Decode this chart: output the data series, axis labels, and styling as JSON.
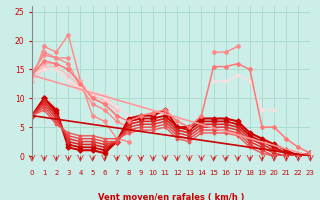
{
  "bg_color": "#cceee8",
  "grid_color": "#aaddcc",
  "xlabel": "Vent moyen/en rafales ( km/h )",
  "xlabel_color": "#cc0000",
  "tick_color": "#cc0000",
  "xmin": 0,
  "xmax": 23,
  "ymin": 0,
  "ymax": 26,
  "yticks": [
    0,
    5,
    10,
    15,
    20,
    25
  ],
  "xticks": [
    0,
    1,
    2,
    3,
    4,
    5,
    6,
    7,
    8,
    9,
    10,
    11,
    12,
    13,
    14,
    15,
    16,
    17,
    18,
    19,
    20,
    21,
    22,
    23
  ],
  "lines": [
    {
      "x": [
        0,
        1,
        2,
        3,
        4,
        5,
        6,
        7,
        8,
        9,
        10,
        11,
        12,
        13,
        14,
        15,
        16,
        17,
        18,
        19,
        20,
        21,
        22,
        23
      ],
      "y": [
        13,
        19,
        18,
        21,
        13,
        7,
        6,
        3,
        2.5,
        null,
        null,
        null,
        null,
        null,
        null,
        null,
        null,
        null,
        null,
        null,
        null,
        null,
        null,
        null
      ],
      "color": "#ff8888",
      "lw": 1.0,
      "marker": "D",
      "ms": 2.0
    },
    {
      "x": [
        0,
        1,
        2,
        3,
        4,
        5,
        6,
        7,
        8,
        9,
        10,
        11,
        12,
        13,
        14,
        15,
        16,
        17,
        18,
        19,
        20,
        21,
        22,
        23
      ],
      "y": [
        14,
        18,
        17,
        17,
        null,
        null,
        null,
        null,
        null,
        null,
        null,
        null,
        null,
        null,
        null,
        18,
        18,
        19,
        null,
        null,
        null,
        null,
        null,
        null
      ],
      "color": "#ff8888",
      "lw": 1.0,
      "marker": "D",
      "ms": 2.0
    },
    {
      "x": [
        0,
        1,
        2,
        3,
        4,
        5,
        6,
        7,
        8,
        9,
        10,
        11,
        12,
        13,
        14,
        15,
        16,
        17,
        18,
        19,
        20,
        21,
        22,
        23
      ],
      "y": [
        14.5,
        17.5,
        17,
        16,
        12,
        9,
        8,
        6,
        5,
        null,
        null,
        null,
        null,
        null,
        null,
        null,
        null,
        null,
        null,
        null,
        null,
        null,
        null,
        null
      ],
      "color": "#ff8888",
      "lw": 1.0,
      "marker": "D",
      "ms": 2.0
    },
    {
      "x": [
        0,
        1,
        2,
        3,
        4,
        5,
        6,
        7,
        8,
        9,
        10,
        11,
        12,
        13,
        14,
        15,
        16,
        17,
        18,
        19,
        20,
        21,
        22,
        23
      ],
      "y": [
        14,
        16,
        16,
        15,
        13,
        10,
        9,
        7,
        null,
        null,
        null,
        null,
        null,
        null,
        null,
        null,
        null,
        null,
        null,
        null,
        null,
        null,
        null,
        null
      ],
      "color": "#ffaaaa",
      "lw": 1.0,
      "marker": "D",
      "ms": 1.8
    },
    {
      "x": [
        0,
        1,
        2,
        3,
        4,
        5,
        6,
        7,
        8,
        9,
        10,
        11,
        12,
        13,
        14,
        15,
        16,
        17,
        18,
        19,
        20,
        21,
        22,
        23
      ],
      "y": [
        13.5,
        15.5,
        15.5,
        14,
        12,
        10.5,
        9.5,
        8,
        null,
        null,
        null,
        null,
        null,
        null,
        null,
        null,
        null,
        null,
        null,
        null,
        null,
        null,
        null,
        null
      ],
      "color": "#ffbbbb",
      "lw": 1.0,
      "marker": "D",
      "ms": 1.8
    },
    {
      "x": [
        0,
        1,
        2,
        3,
        4,
        5,
        6,
        7,
        8,
        9,
        10,
        11,
        12,
        13,
        14,
        15,
        16,
        17,
        18,
        19,
        20,
        21,
        22,
        23
      ],
      "y": [
        13,
        15,
        15,
        13,
        11.5,
        11,
        10.5,
        8.5,
        null,
        null,
        null,
        null,
        null,
        null,
        null,
        null,
        null,
        null,
        null,
        null,
        null,
        null,
        null,
        null
      ],
      "color": "#ffcccc",
      "lw": 1.0,
      "marker": "D",
      "ms": 1.5
    },
    {
      "x": [
        0,
        1,
        2,
        3,
        4,
        5,
        6,
        7,
        8,
        9,
        10,
        11,
        12,
        13,
        14,
        15,
        16,
        17,
        18,
        19,
        20,
        21,
        22,
        23
      ],
      "y": [
        14,
        15,
        15,
        13,
        12,
        11,
        10,
        8.5,
        7,
        null,
        null,
        null,
        null,
        null,
        null,
        13,
        13,
        14,
        13,
        8,
        8,
        null,
        null,
        null
      ],
      "color": "#ffdddd",
      "lw": 1.0,
      "marker": "D",
      "ms": 1.5
    },
    {
      "x": [
        0,
        1,
        2,
        3,
        4,
        5,
        6,
        7,
        8,
        9,
        10,
        11,
        12,
        13,
        14,
        15,
        16,
        17,
        18,
        19,
        20,
        21,
        22,
        23
      ],
      "y": [
        7,
        10,
        8,
        1.5,
        1,
        1,
        0.5,
        2.5,
        6.5,
        7,
        7,
        8,
        5,
        5,
        6.5,
        6.5,
        6.5,
        6,
        4,
        3,
        2,
        1,
        0,
        0.5
      ],
      "color": "#cc0000",
      "lw": 1.5,
      "marker": "D",
      "ms": 2.5
    },
    {
      "x": [
        0,
        1,
        2,
        3,
        4,
        5,
        6,
        7,
        8,
        9,
        10,
        11,
        12,
        13,
        14,
        15,
        16,
        17,
        18,
        19,
        20,
        21,
        22,
        23
      ],
      "y": [
        7,
        10,
        7.5,
        2,
        1.5,
        1.5,
        1,
        2.5,
        6,
        6.5,
        6.5,
        7,
        5,
        4.5,
        6,
        6,
        6,
        5.5,
        3.5,
        2.5,
        1.5,
        0.5,
        0,
        0.5
      ],
      "color": "#cc0000",
      "lw": 1.3,
      "marker": "D",
      "ms": 2.5
    },
    {
      "x": [
        0,
        1,
        2,
        3,
        4,
        5,
        6,
        7,
        8,
        9,
        10,
        11,
        12,
        13,
        14,
        15,
        16,
        17,
        18,
        19,
        20,
        21,
        22,
        23
      ],
      "y": [
        7,
        9.5,
        7,
        2.5,
        2,
        2,
        1.5,
        2.5,
        5.5,
        6,
        6,
        6.5,
        4.5,
        4,
        5.5,
        5.5,
        5.5,
        5,
        3,
        2,
        1,
        0.5,
        0,
        0.5
      ],
      "color": "#dd2222",
      "lw": 1.2,
      "marker": "D",
      "ms": 2.0
    },
    {
      "x": [
        0,
        1,
        2,
        3,
        4,
        5,
        6,
        7,
        8,
        9,
        10,
        11,
        12,
        13,
        14,
        15,
        16,
        17,
        18,
        19,
        20,
        21,
        22,
        23
      ],
      "y": [
        7,
        9,
        6.5,
        3,
        2.5,
        2.5,
        2,
        2.5,
        5,
        5.5,
        5.5,
        6,
        4,
        3.5,
        5,
        5,
        5,
        4.5,
        2.5,
        1.5,
        0.5,
        0,
        0,
        0.5
      ],
      "color": "#dd3333",
      "lw": 1.1,
      "marker": "D",
      "ms": 2.0
    },
    {
      "x": [
        0,
        1,
        2,
        3,
        4,
        5,
        6,
        7,
        8,
        9,
        10,
        11,
        12,
        13,
        14,
        15,
        16,
        17,
        18,
        19,
        20,
        21,
        22,
        23
      ],
      "y": [
        7,
        8.5,
        6,
        3.5,
        3,
        3,
        2.5,
        2.5,
        4.5,
        5,
        5,
        5.5,
        3.5,
        3,
        4.5,
        4.5,
        4.5,
        4,
        2,
        1,
        0,
        0,
        0,
        0.5
      ],
      "color": "#ee4444",
      "lw": 1.0,
      "marker": "D",
      "ms": 1.8
    },
    {
      "x": [
        0,
        1,
        2,
        3,
        4,
        5,
        6,
        7,
        8,
        9,
        10,
        11,
        12,
        13,
        14,
        15,
        16,
        17,
        18,
        19,
        20,
        21,
        22,
        23
      ],
      "y": [
        7,
        8,
        5.5,
        4,
        3.5,
        3.5,
        3,
        3,
        4,
        4.5,
        4.5,
        5,
        3,
        2.5,
        4,
        4,
        4,
        3.5,
        1.5,
        0.5,
        0,
        0,
        0,
        0.5
      ],
      "color": "#ee5555",
      "lw": 1.0,
      "marker": "D",
      "ms": 1.5
    },
    {
      "x": [
        0,
        1,
        2,
        3,
        4,
        5,
        6,
        7,
        8,
        9,
        10,
        11,
        12,
        13,
        14,
        15,
        16,
        17,
        18,
        19,
        20,
        21,
        22,
        23
      ],
      "y": [
        14,
        16.5,
        16,
        15,
        12.5,
        10,
        9,
        7,
        6,
        7,
        7.5,
        8,
        6,
        5,
        7,
        15.5,
        15.5,
        16,
        15,
        5,
        5,
        3,
        1.5,
        0.5
      ],
      "color": "#ff7777",
      "lw": 1.1,
      "marker": "D",
      "ms": 2.0
    },
    {
      "straight_line": true,
      "x": [
        0,
        23
      ],
      "y": [
        14,
        0
      ],
      "color": "#ff9999",
      "lw": 1.2,
      "marker": null,
      "ms": 0
    },
    {
      "straight_line": true,
      "x": [
        0,
        23
      ],
      "y": [
        7,
        0
      ],
      "color": "#cc0000",
      "lw": 1.2,
      "marker": null,
      "ms": 0
    }
  ]
}
